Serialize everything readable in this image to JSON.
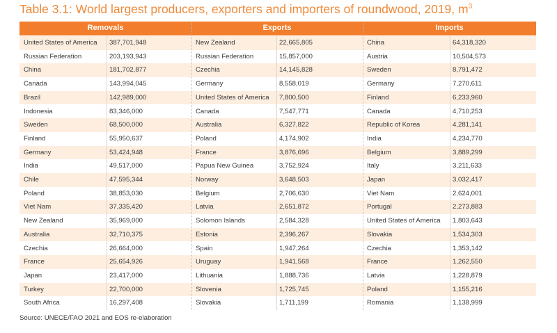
{
  "header": {
    "title": "Table 3.1: World largest producers, exporters and importers of roundwood, 2019, m",
    "title_superscript": "3"
  },
  "table": {
    "groups": [
      "Removals",
      "Exports",
      "Imports"
    ],
    "rows": [
      [
        "United States of America",
        "387,701,948",
        "New Zealand",
        "22,665,805",
        "China",
        "64,318,320"
      ],
      [
        "Russian Federation",
        "203,193,943",
        "Russian Federation",
        "15,857,000",
        "Austria",
        "10,504,573"
      ],
      [
        "China",
        "181,702,877",
        "Czechia",
        "14,145,828",
        "Sweden",
        "8,791,472"
      ],
      [
        "Canada",
        "143,994,045",
        "Germany",
        "8,558,019",
        "Germany",
        "7,270,611"
      ],
      [
        "Brazil",
        "142,989,000",
        "United States of America",
        "7,800,500",
        "Finland",
        "6,233,960"
      ],
      [
        "Indonesia",
        "83,346,000",
        "Canada",
        "7,547,771",
        "Canada",
        "4,710,253"
      ],
      [
        "Sweden",
        "68,500,000",
        "Australia",
        "6,327,822",
        "Republic of Korea",
        "4,281,141"
      ],
      [
        "Finland",
        "55,950,637",
        "Poland",
        "4,174,902",
        "India",
        "4,234,770"
      ],
      [
        "Germany",
        "53,424,948",
        "France",
        "3,876,696",
        "Belgium",
        "3,889,299"
      ],
      [
        "India",
        "49,517,000",
        "Papua New Guinea",
        "3,752,924",
        "Italy",
        "3,211,633"
      ],
      [
        "Chile",
        "47,595,344",
        "Norway",
        "3,648,503",
        "Japan",
        "3,032,417"
      ],
      [
        "Poland",
        "38,853,030",
        "Belgium",
        "2,706,630",
        "Viet Nam",
        "2,624,001"
      ],
      [
        "Viet Nam",
        "37,335,420",
        "Latvia",
        "2,651,872",
        "Portugal",
        "2,273,883"
      ],
      [
        "New Zealand",
        "35,969,000",
        "Solomon Islands",
        "2,584,328",
        "United States of America",
        "1,803,643"
      ],
      [
        "Australia",
        "32,710,375",
        "Estonia",
        "2,396,267",
        "Slovakia",
        "1,534,303"
      ],
      [
        "Czechia",
        "26,664,000",
        "Spain",
        "1,947,264",
        "Czechia",
        "1,353,142"
      ],
      [
        "France",
        "25,654,926",
        "Uruguay",
        "1,941,568",
        "France",
        "1,262,550"
      ],
      [
        "Japan",
        "23,417,000",
        "Lithuania",
        "1,888,736",
        "Latvia",
        "1,228,879"
      ],
      [
        "Turkey",
        "22,700,000",
        "Slovenia",
        "1,725,745",
        "Poland",
        "1,155,216"
      ],
      [
        "South Africa",
        "16,297,408",
        "Slovakia",
        "1,711,199",
        "Romania",
        "1,138,999"
      ]
    ]
  },
  "footer": {
    "source": "Source: UNECE/FAO 2021 and EOS re-elaboration"
  }
}
